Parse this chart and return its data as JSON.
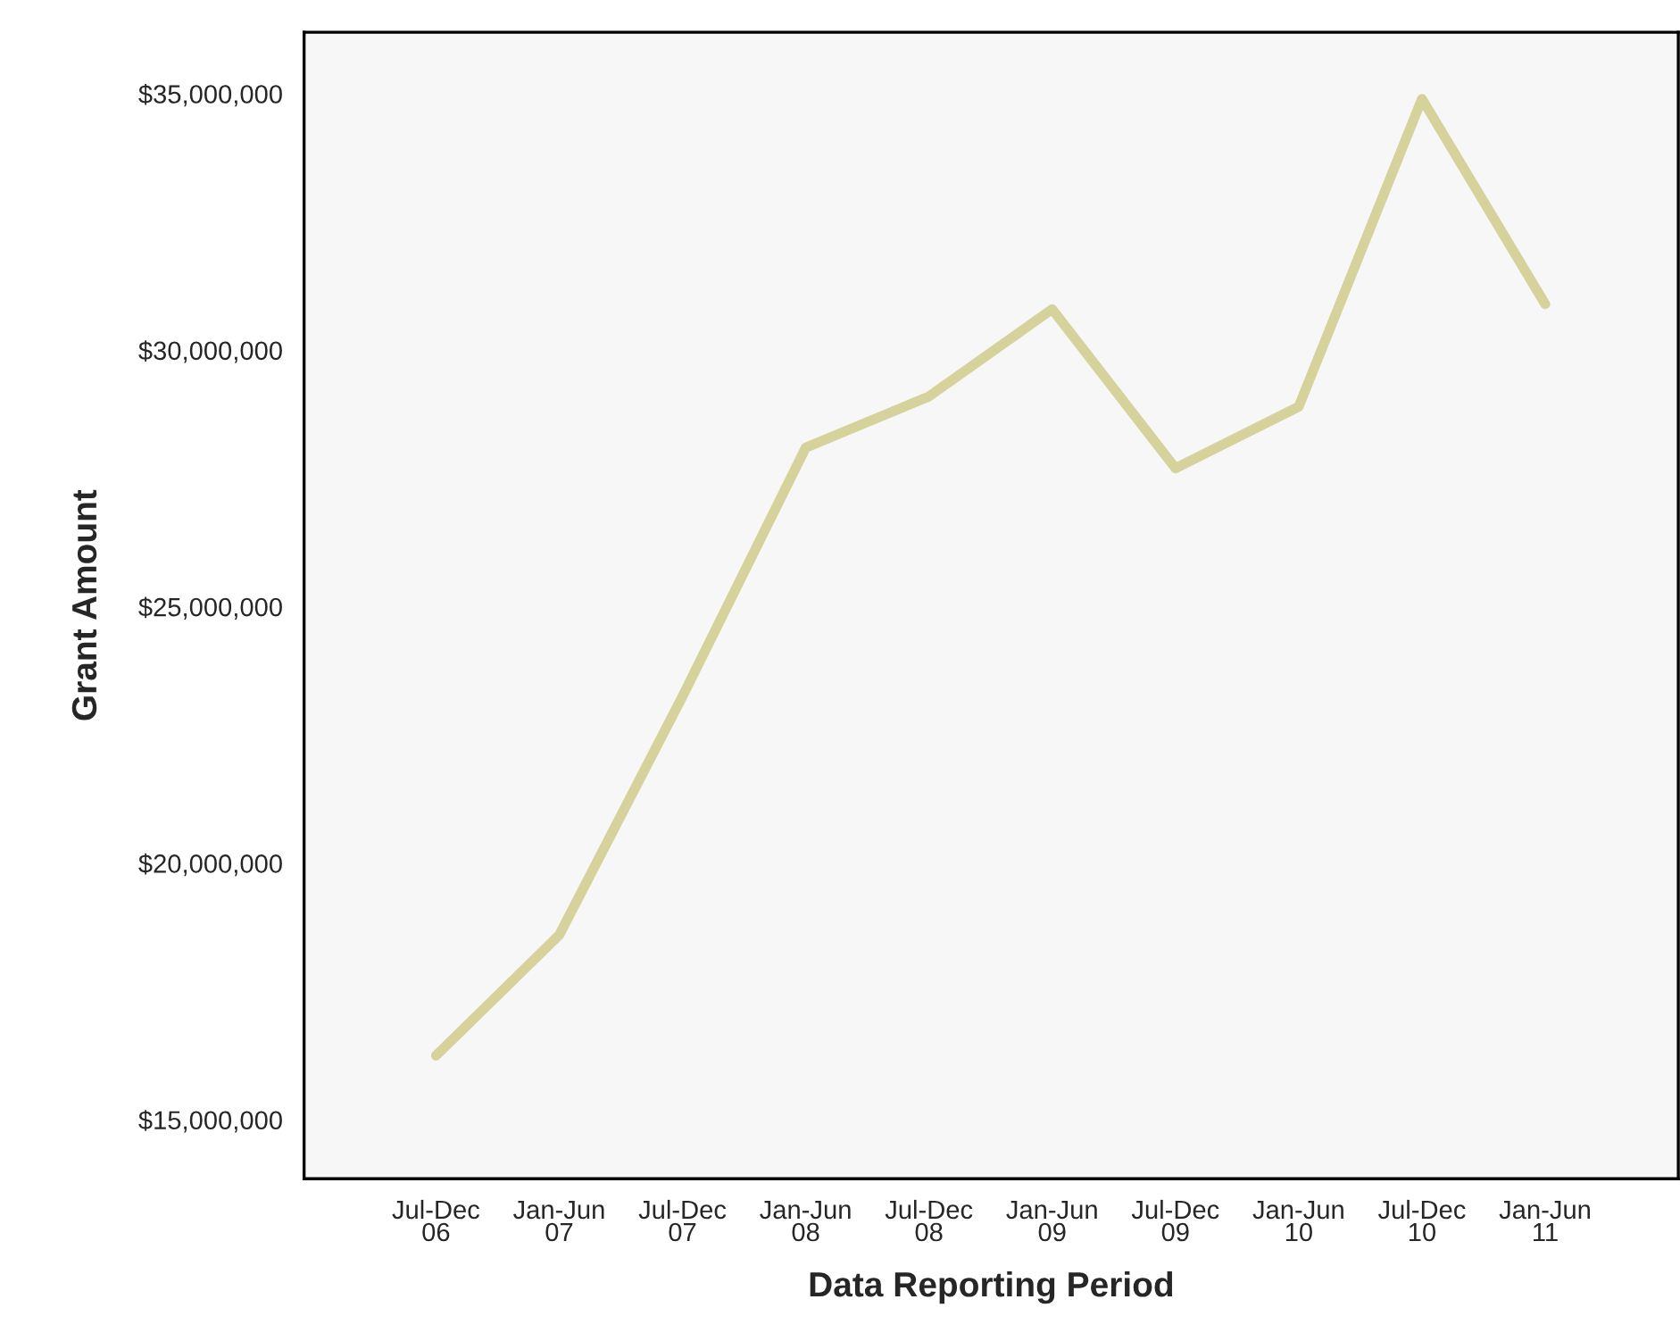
{
  "chart_data": {
    "type": "line",
    "xlabel": "Data Reporting Period",
    "ylabel": "Grant Amount",
    "categories": [
      "Jul-Dec\n06",
      "Jan-Jun\n07",
      "Jul-Dec\n07",
      "Jan-Jun\n08",
      "Jul-Dec\n08",
      "Jan-Jun\n09",
      "Jul-Dec\n09",
      "Jan-Jun\n10",
      "Jul-Dec\n10",
      "Jan-Jun\n11"
    ],
    "series": [
      {
        "color": "#d6d29c",
        "values": [
          16250000,
          18600000,
          23250000,
          28100000,
          29100000,
          30800000,
          27700000,
          28900000,
          34900000,
          30900000
        ]
      }
    ],
    "ylim": [
      13850000,
      36200000
    ],
    "yticks": [
      {
        "value": 15000000,
        "label": "$15,000,000"
      },
      {
        "value": 20000000,
        "label": "$20,000,000"
      },
      {
        "value": 25000000,
        "label": "$25,000,000"
      },
      {
        "value": 30000000,
        "label": "$30,000,000"
      },
      {
        "value": 35000000,
        "label": "$35,000,000"
      }
    ],
    "grid": false,
    "legend": false,
    "marker": "none",
    "line_style": "solid"
  }
}
